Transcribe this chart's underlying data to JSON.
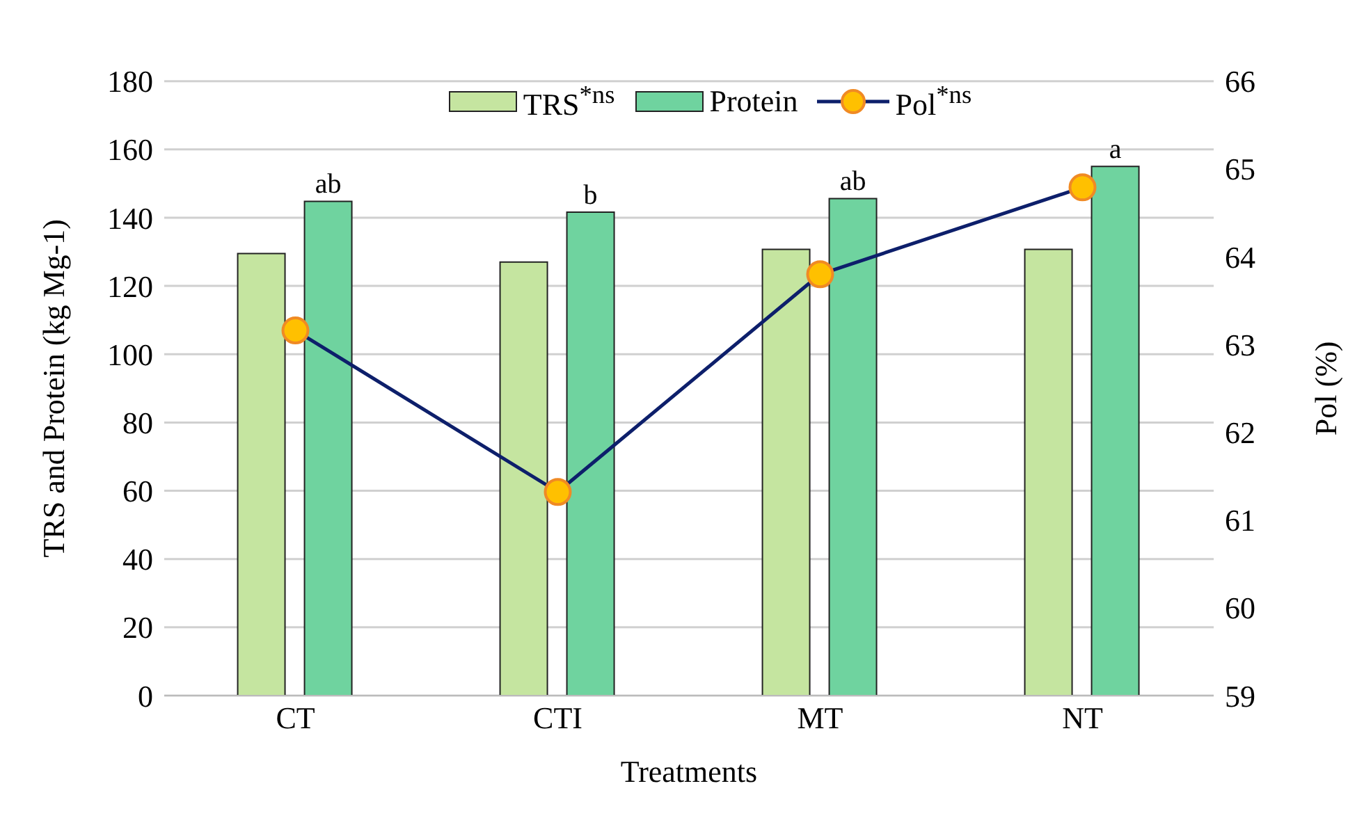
{
  "chart_data": {
    "type": "bar",
    "xlabel": "Treatments",
    "ylabel": "TRS and Protein (kg Mg-1)",
    "y2label": "Pol (%)",
    "categories": [
      "CT",
      "CTI",
      "MT",
      "NT"
    ],
    "series": [
      {
        "name": "TRS$^{*ns}$",
        "color": "#c5e5a0",
        "values": [
          129.5,
          127,
          130.7,
          130.7
        ]
      },
      {
        "name": "Protein",
        "color": "#6fd39f",
        "values": [
          144.8,
          141.6,
          145.6,
          155
        ]
      },
      {
        "name": "Pol$^{*ns}$",
        "type": "line",
        "axis": "y2",
        "color": "#0d1f6b",
        "values": [
          63.16,
          61.32,
          63.8,
          64.79
        ]
      }
    ],
    "annotations": [
      "ab",
      "b",
      "ab",
      "a"
    ],
    "ylim": [
      0,
      180
    ],
    "yticks": [
      0,
      20,
      40,
      60,
      80,
      100,
      120,
      140,
      160,
      180
    ],
    "y2lim": [
      59,
      66
    ],
    "y2ticks": [
      59,
      60,
      61,
      62,
      63,
      64,
      65,
      66
    ],
    "grid": "y",
    "legend": "top",
    "marker": "circle",
    "line_style": "solid"
  }
}
